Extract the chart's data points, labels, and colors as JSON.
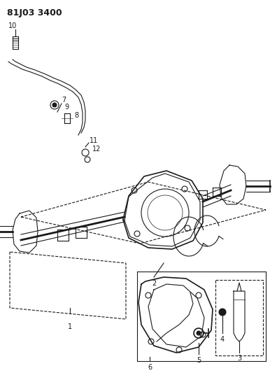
{
  "title": "81J03 3400",
  "bg_color": "#ffffff",
  "line_color": "#1a1a1a",
  "fig_width": 3.96,
  "fig_height": 5.33,
  "dpi": 100
}
